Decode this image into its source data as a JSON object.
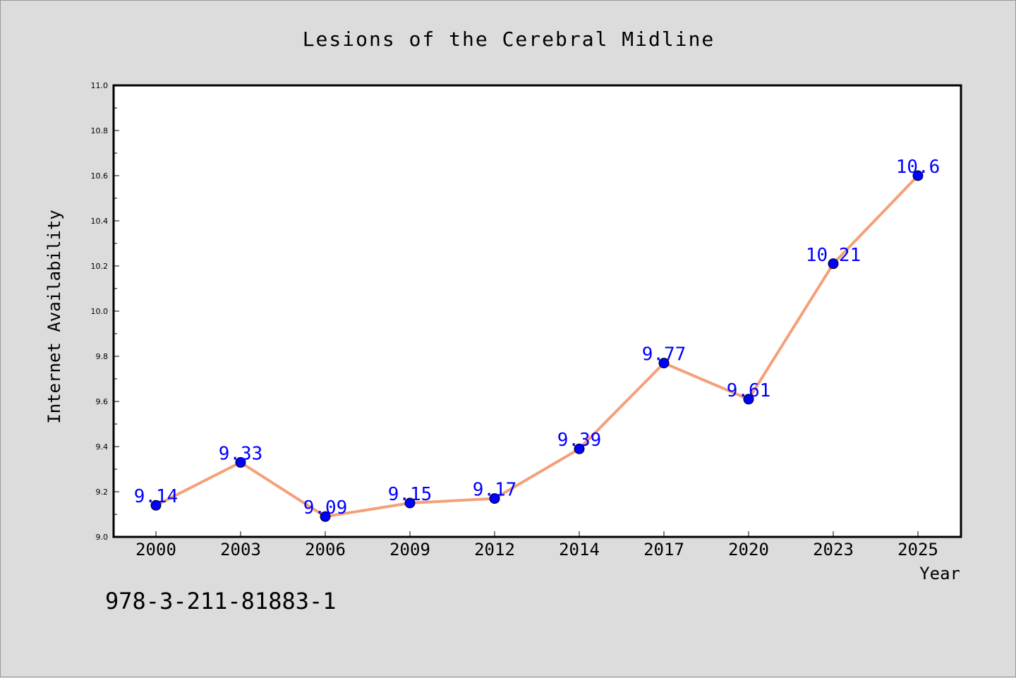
{
  "chart_data": {
    "type": "line",
    "title": "Lesions of the Cerebral Midline",
    "xlabel": "Year",
    "ylabel": "Internet Availability",
    "categories": [
      "2000",
      "2003",
      "2006",
      "2009",
      "2012",
      "2014",
      "2017",
      "2020",
      "2023",
      "2025"
    ],
    "series": [
      {
        "values": [
          9.14,
          9.33,
          9.09,
          9.15,
          9.17,
          9.39,
          9.77,
          9.61,
          10.21,
          10.6
        ],
        "labels": [
          "9.14",
          "9.33",
          "9.09",
          "9.15",
          "9.17",
          "9.39",
          "9.77",
          "9.61",
          "10.21",
          "10.6"
        ],
        "line_color": "#f4a07a",
        "marker_color": "#0000ff"
      }
    ],
    "ylim": [
      9.0,
      11.0
    ],
    "yticks": [
      "9.0",
      "9.2",
      "9.4",
      "9.6",
      "9.8",
      "10.0",
      "10.2",
      "10.4",
      "10.6",
      "10.8",
      "11.0"
    ],
    "grid": false,
    "legend": "none"
  },
  "footer": {
    "isbn": "978-3-211-81883-1"
  },
  "colors": {
    "background": "#dcdcdc",
    "plot_background": "#ffffff"
  }
}
